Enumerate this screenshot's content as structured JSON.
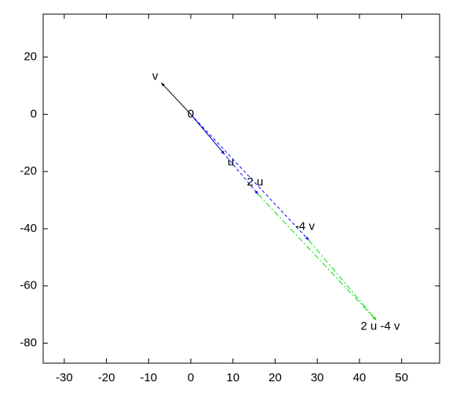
{
  "chart_data": {
    "type": "vector",
    "xlim": [
      -35,
      59
    ],
    "ylim": [
      -87,
      35
    ],
    "xticks": [
      -30,
      -20,
      -10,
      0,
      10,
      20,
      30,
      40,
      50
    ],
    "yticks": [
      20,
      0,
      -20,
      -40,
      -60,
      -80
    ],
    "grid": false,
    "origin_label": "0",
    "vectors": [
      {
        "label": "v",
        "x0": 0,
        "y0": 0,
        "x1": -7,
        "y1": 11,
        "color": "#000000",
        "dash": "solid"
      },
      {
        "label": "u",
        "x0": 0,
        "y0": 0,
        "x1": 8,
        "y1": -14,
        "color": "#000080",
        "dash": "solid"
      },
      {
        "label": "2 u",
        "x0": 0,
        "y0": 0,
        "x1": 16,
        "y1": -28,
        "color": "#0000ff",
        "dash": "dashed"
      },
      {
        "label": "-4 v",
        "x0": 0,
        "y0": 0,
        "x1": 28,
        "y1": -44,
        "color": "#0000ff",
        "dash": "dashed"
      },
      {
        "label": "2 u -4 v",
        "x0": 16,
        "y0": -28,
        "x1": 44,
        "y1": -72,
        "color": "#00e000",
        "dash": "dashdot"
      },
      {
        "x0": 28,
        "y0": -44,
        "x1": 44,
        "y1": -72,
        "color": "#00e000",
        "dash": "dashdot"
      }
    ]
  }
}
